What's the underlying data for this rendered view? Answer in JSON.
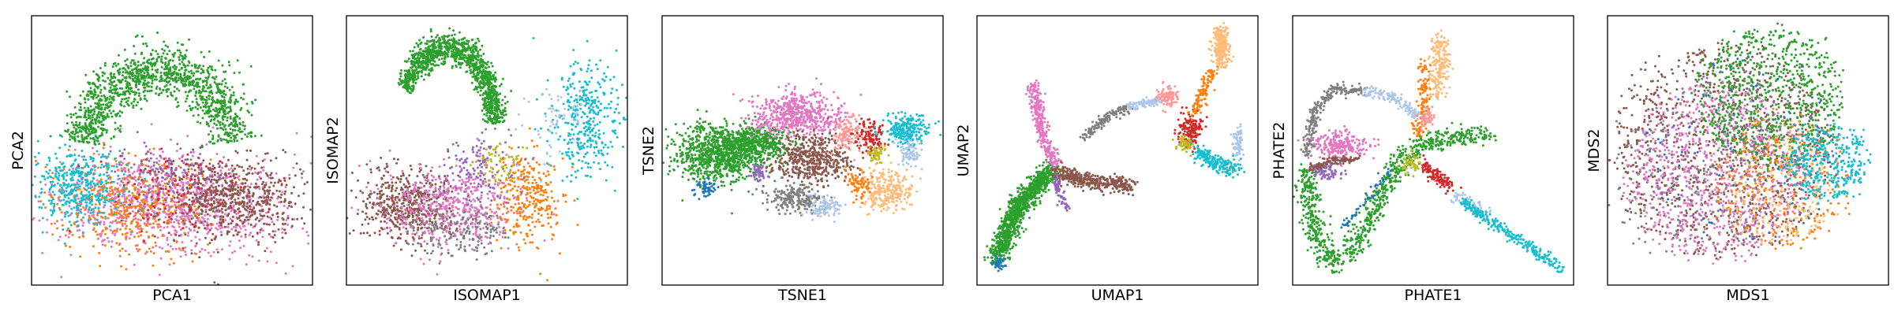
{
  "palette": {
    "blue": "#1f77b4",
    "orange": "#ff7f0e",
    "green": "#2ca02c",
    "red": "#d62728",
    "purple": "#9467bd",
    "brown": "#8c564b",
    "pink": "#e377c2",
    "gray": "#7f7f7f",
    "olive": "#bcbd22",
    "cyan": "#17becf",
    "lightblue": "#aec7e8",
    "peach": "#ffbb78",
    "salmon": "#ff9896"
  },
  "chart_data": [
    {
      "type": "scatter",
      "title": "",
      "xlabel": "PCA1",
      "ylabel": "PCA2",
      "grid": false,
      "legend": "none",
      "ticks": "hidden",
      "xlim": [
        0,
        1
      ],
      "ylim": [
        0,
        1
      ],
      "series": [
        {
          "color": "pink",
          "clusters": [
            {
              "cx": 0.5,
              "cy": 0.3,
              "sx": 0.2,
              "sy": 0.09,
              "n": 1100
            }
          ]
        },
        {
          "color": "brown",
          "clusters": [
            {
              "cx": 0.7,
              "cy": 0.33,
              "sx": 0.13,
              "sy": 0.08,
              "n": 650
            }
          ]
        },
        {
          "color": "orange",
          "clusters": [
            {
              "cx": 0.34,
              "cy": 0.3,
              "sx": 0.12,
              "sy": 0.09,
              "n": 420
            }
          ]
        },
        {
          "color": "cyan",
          "clusters": [
            {
              "cx": 0.17,
              "cy": 0.37,
              "sx": 0.08,
              "sy": 0.07,
              "n": 420
            }
          ]
        },
        {
          "color": "green",
          "arc": {
            "cx": 0.45,
            "cy": 0.48,
            "rx": 0.27,
            "ry": 0.32,
            "a0": 0.05,
            "a1": 0.95,
            "width": 0.07,
            "n": 1300
          }
        },
        {
          "color": "purple",
          "clusters": [
            {
              "cx": 0.46,
              "cy": 0.42,
              "sx": 0.09,
              "sy": 0.05,
              "n": 120
            }
          ]
        },
        {
          "color": "red",
          "clusters": [
            {
              "cx": 0.55,
              "cy": 0.33,
              "sx": 0.15,
              "sy": 0.08,
              "n": 90
            }
          ]
        }
      ]
    },
    {
      "type": "scatter",
      "title": "",
      "xlabel": "ISOMAP1",
      "ylabel": "ISOMAP2",
      "grid": false,
      "legend": "none",
      "ticks": "hidden",
      "xlim": [
        0,
        1
      ],
      "ylim": [
        0,
        1
      ],
      "series": [
        {
          "color": "brown",
          "clusters": [
            {
              "cx": 0.22,
              "cy": 0.3,
              "sx": 0.09,
              "sy": 0.07,
              "n": 520
            }
          ]
        },
        {
          "color": "pink",
          "clusters": [
            {
              "cx": 0.37,
              "cy": 0.29,
              "sx": 0.12,
              "sy": 0.07,
              "n": 520
            }
          ]
        },
        {
          "color": "gray",
          "clusters": [
            {
              "cx": 0.4,
              "cy": 0.2,
              "sx": 0.1,
              "sy": 0.05,
              "n": 160
            }
          ]
        },
        {
          "color": "orange",
          "clusters": [
            {
              "cx": 0.65,
              "cy": 0.33,
              "sx": 0.06,
              "sy": 0.09,
              "n": 300
            }
          ]
        },
        {
          "color": "cyan",
          "clusters": [
            {
              "cx": 0.85,
              "cy": 0.62,
              "sx": 0.06,
              "sy": 0.11,
              "n": 360
            }
          ]
        },
        {
          "color": "green",
          "arc": {
            "cx": 0.36,
            "cy": 0.6,
            "rx": 0.17,
            "ry": 0.28,
            "a0": 0.0,
            "a1": 0.85,
            "width": 0.045,
            "n": 1200
          }
        },
        {
          "color": "purple",
          "clusters": [
            {
              "cx": 0.47,
              "cy": 0.43,
              "sx": 0.07,
              "sy": 0.07,
              "n": 140
            }
          ]
        },
        {
          "color": "olive",
          "clusters": [
            {
              "cx": 0.55,
              "cy": 0.45,
              "sx": 0.04,
              "sy": 0.04,
              "n": 60
            }
          ]
        },
        {
          "color": "lightblue",
          "clusters": [
            {
              "cx": 0.74,
              "cy": 0.6,
              "sx": 0.06,
              "sy": 0.07,
              "n": 60
            }
          ]
        }
      ]
    },
    {
      "type": "scatter",
      "title": "",
      "xlabel": "TSNE1",
      "ylabel": "TSNE2",
      "grid": false,
      "legend": "none",
      "ticks": "hidden",
      "xlim": [
        0,
        1
      ],
      "ylim": [
        0,
        1
      ],
      "series": [
        {
          "color": "green",
          "clusters": [
            {
              "cx": 0.2,
              "cy": 0.49,
              "sx": 0.08,
              "sy": 0.05,
              "n": 900
            },
            {
              "cx": 0.34,
              "cy": 0.53,
              "sx": 0.06,
              "sy": 0.03,
              "n": 400
            }
          ]
        },
        {
          "color": "blue",
          "clusters": [
            {
              "cx": 0.15,
              "cy": 0.36,
              "sx": 0.02,
              "sy": 0.015,
              "n": 60
            }
          ]
        },
        {
          "color": "pink",
          "clusters": [
            {
              "cx": 0.48,
              "cy": 0.63,
              "sx": 0.08,
              "sy": 0.04,
              "n": 600
            }
          ]
        },
        {
          "color": "brown",
          "clusters": [
            {
              "cx": 0.53,
              "cy": 0.47,
              "sx": 0.07,
              "sy": 0.045,
              "n": 480
            }
          ]
        },
        {
          "color": "purple",
          "clusters": [
            {
              "cx": 0.34,
              "cy": 0.42,
              "sx": 0.015,
              "sy": 0.015,
              "n": 60
            }
          ]
        },
        {
          "color": "gray",
          "clusters": [
            {
              "cx": 0.48,
              "cy": 0.32,
              "sx": 0.05,
              "sy": 0.025,
              "n": 220
            }
          ]
        },
        {
          "color": "lightblue",
          "clusters": [
            {
              "cx": 0.58,
              "cy": 0.29,
              "sx": 0.03,
              "sy": 0.02,
              "n": 100
            }
          ]
        },
        {
          "color": "salmon",
          "clusters": [
            {
              "cx": 0.66,
              "cy": 0.56,
              "sx": 0.025,
              "sy": 0.03,
              "n": 120
            }
          ]
        },
        {
          "color": "red",
          "clusters": [
            {
              "cx": 0.74,
              "cy": 0.55,
              "sx": 0.025,
              "sy": 0.03,
              "n": 120
            }
          ]
        },
        {
          "color": "cyan",
          "clusters": [
            {
              "cx": 0.87,
              "cy": 0.58,
              "sx": 0.04,
              "sy": 0.03,
              "n": 240
            }
          ]
        },
        {
          "color": "lightblue",
          "clusters": [
            {
              "cx": 0.88,
              "cy": 0.49,
              "sx": 0.02,
              "sy": 0.025,
              "n": 80
            }
          ]
        },
        {
          "color": "olive",
          "clusters": [
            {
              "cx": 0.76,
              "cy": 0.49,
              "sx": 0.015,
              "sy": 0.015,
              "n": 60
            }
          ]
        },
        {
          "color": "peach",
          "clusters": [
            {
              "cx": 0.8,
              "cy": 0.35,
              "sx": 0.045,
              "sy": 0.04,
              "n": 280
            }
          ]
        },
        {
          "color": "orange",
          "clusters": [
            {
              "cx": 0.7,
              "cy": 0.38,
              "sx": 0.02,
              "sy": 0.03,
              "n": 80
            }
          ]
        }
      ]
    },
    {
      "type": "scatter",
      "title": "",
      "xlabel": "UMAP1",
      "ylabel": "UMAP2",
      "grid": false,
      "legend": "none",
      "ticks": "hidden",
      "xlim": [
        0,
        1
      ],
      "ylim": [
        0,
        1
      ],
      "series": [
        {
          "color": "green",
          "line": [
            [
              0.07,
              0.1
            ],
            [
              0.15,
              0.3
            ],
            [
              0.27,
              0.43
            ]
          ],
          "width": 0.018,
          "n": 1100
        },
        {
          "color": "blue",
          "clusters": [
            {
              "cx": 0.08,
              "cy": 0.08,
              "sx": 0.01,
              "sy": 0.012,
              "n": 40
            }
          ]
        },
        {
          "color": "pink",
          "line": [
            [
              0.2,
              0.75
            ],
            [
              0.23,
              0.57
            ],
            [
              0.28,
              0.44
            ]
          ],
          "width": 0.012,
          "n": 320
        },
        {
          "color": "brown",
          "line": [
            [
              0.28,
              0.42
            ],
            [
              0.42,
              0.38
            ],
            [
              0.55,
              0.37
            ]
          ],
          "width": 0.015,
          "n": 420
        },
        {
          "color": "purple",
          "line": [
            [
              0.28,
              0.4
            ],
            [
              0.3,
              0.33
            ],
            [
              0.32,
              0.28
            ]
          ],
          "width": 0.008,
          "n": 60
        },
        {
          "color": "gray",
          "line": [
            [
              0.38,
              0.55
            ],
            [
              0.46,
              0.62
            ],
            [
              0.54,
              0.66
            ]
          ],
          "width": 0.01,
          "n": 140
        },
        {
          "color": "lightblue",
          "line": [
            [
              0.54,
              0.66
            ],
            [
              0.62,
              0.68
            ],
            [
              0.66,
              0.69
            ]
          ],
          "width": 0.008,
          "n": 100
        },
        {
          "color": "salmon",
          "clusters": [
            {
              "cx": 0.68,
              "cy": 0.7,
              "sx": 0.02,
              "sy": 0.02,
              "n": 100
            }
          ]
        },
        {
          "color": "red",
          "clusters": [
            {
              "cx": 0.76,
              "cy": 0.58,
              "sx": 0.02,
              "sy": 0.035,
              "n": 160
            }
          ]
        },
        {
          "color": "peach",
          "line": [
            [
              0.87,
              0.95
            ],
            [
              0.87,
              0.82
            ]
          ],
          "width": 0.015,
          "n": 240
        },
        {
          "color": "orange",
          "line": [
            [
              0.84,
              0.8
            ],
            [
              0.8,
              0.7
            ],
            [
              0.77,
              0.63
            ]
          ],
          "width": 0.01,
          "n": 120
        },
        {
          "color": "lightblue",
          "clusters": [
            {
              "cx": 0.93,
              "cy": 0.53,
              "sx": 0.01,
              "sy": 0.03,
              "n": 80
            }
          ]
        },
        {
          "color": "cyan",
          "line": [
            [
              0.78,
              0.5
            ],
            [
              0.85,
              0.45
            ],
            [
              0.92,
              0.43
            ]
          ],
          "width": 0.015,
          "n": 200
        },
        {
          "color": "olive",
          "clusters": [
            {
              "cx": 0.74,
              "cy": 0.52,
              "sx": 0.015,
              "sy": 0.015,
              "n": 50
            }
          ]
        }
      ]
    },
    {
      "type": "scatter",
      "title": "",
      "xlabel": "PHATE1",
      "ylabel": "PHATE2",
      "grid": false,
      "legend": "none",
      "ticks": "hidden",
      "xlim": [
        0,
        1
      ],
      "ylim": [
        0,
        1
      ],
      "series": [
        {
          "color": "green",
          "line": [
            [
              0.05,
              0.42
            ],
            [
              0.08,
              0.2
            ],
            [
              0.13,
              0.08
            ],
            [
              0.22,
              0.14
            ],
            [
              0.3,
              0.3
            ],
            [
              0.38,
              0.45
            ],
            [
              0.46,
              0.52
            ],
            [
              0.56,
              0.55
            ],
            [
              0.66,
              0.55
            ],
            [
              0.7,
              0.55
            ]
          ],
          "width": 0.02,
          "n": 900
        },
        {
          "color": "gray",
          "line": [
            [
              0.05,
              0.48
            ],
            [
              0.08,
              0.65
            ],
            [
              0.15,
              0.73
            ],
            [
              0.25,
              0.72
            ]
          ],
          "width": 0.01,
          "n": 240
        },
        {
          "color": "lightblue",
          "line": [
            [
              0.25,
              0.72
            ],
            [
              0.35,
              0.7
            ],
            [
              0.45,
              0.63
            ]
          ],
          "width": 0.01,
          "n": 140
        },
        {
          "color": "pink",
          "clusters": [
            {
              "cx": 0.17,
              "cy": 0.52,
              "sx": 0.05,
              "sy": 0.025,
              "n": 240
            }
          ]
        },
        {
          "color": "brown",
          "line": [
            [
              0.06,
              0.43
            ],
            [
              0.14,
              0.46
            ],
            [
              0.23,
              0.47
            ]
          ],
          "width": 0.008,
          "n": 140
        },
        {
          "color": "purple",
          "clusters": [
            {
              "cx": 0.12,
              "cy": 0.42,
              "sx": 0.03,
              "sy": 0.015,
              "n": 60
            }
          ]
        },
        {
          "color": "peach",
          "line": [
            [
              0.52,
              0.92
            ],
            [
              0.53,
              0.8
            ],
            [
              0.5,
              0.7
            ]
          ],
          "width": 0.018,
          "n": 200
        },
        {
          "color": "orange",
          "line": [
            [
              0.47,
              0.83
            ],
            [
              0.47,
              0.7
            ],
            [
              0.44,
              0.55
            ]
          ],
          "width": 0.012,
          "n": 120
        },
        {
          "color": "salmon",
          "clusters": [
            {
              "cx": 0.48,
              "cy": 0.62,
              "sx": 0.015,
              "sy": 0.02,
              "n": 50
            }
          ]
        },
        {
          "color": "red",
          "line": [
            [
              0.46,
              0.45
            ],
            [
              0.52,
              0.4
            ],
            [
              0.56,
              0.36
            ]
          ],
          "width": 0.012,
          "n": 120
        },
        {
          "color": "olive",
          "clusters": [
            {
              "cx": 0.42,
              "cy": 0.45,
              "sx": 0.015,
              "sy": 0.015,
              "n": 50
            }
          ]
        },
        {
          "color": "lightblue",
          "line": [
            [
              0.58,
              0.33
            ],
            [
              0.7,
              0.26
            ]
          ],
          "width": 0.012,
          "n": 80
        },
        {
          "color": "cyan",
          "line": [
            [
              0.6,
              0.31
            ],
            [
              0.76,
              0.2
            ],
            [
              0.96,
              0.06
            ]
          ],
          "width": 0.01,
          "n": 260
        },
        {
          "color": "blue",
          "line": [
            [
              0.18,
              0.22
            ],
            [
              0.28,
              0.34
            ],
            [
              0.34,
              0.42
            ]
          ],
          "width": 0.008,
          "n": 50
        }
      ]
    },
    {
      "type": "scatter",
      "title": "",
      "xlabel": "MDS1",
      "ylabel": "MDS2",
      "grid": false,
      "legend": "none",
      "ticks": "hidden",
      "xlim": [
        0,
        1
      ],
      "ylim": [
        0,
        1
      ],
      "series": [
        {
          "color": "brown",
          "disc": {
            "cx": 0.42,
            "cy": 0.5,
            "r": 0.4,
            "n": 1000
          }
        },
        {
          "color": "pink",
          "disc": {
            "cx": 0.38,
            "cy": 0.42,
            "r": 0.32,
            "n": 800
          }
        },
        {
          "color": "green",
          "disc": {
            "cx": 0.58,
            "cy": 0.7,
            "r": 0.26,
            "n": 800
          }
        },
        {
          "color": "orange",
          "disc": {
            "cx": 0.62,
            "cy": 0.38,
            "r": 0.24,
            "n": 300
          }
        },
        {
          "color": "peach",
          "disc": {
            "cx": 0.62,
            "cy": 0.35,
            "r": 0.2,
            "n": 200
          }
        },
        {
          "color": "cyan",
          "disc": {
            "cx": 0.78,
            "cy": 0.45,
            "r": 0.14,
            "n": 360
          }
        },
        {
          "color": "purple",
          "disc": {
            "cx": 0.46,
            "cy": 0.48,
            "r": 0.33,
            "n": 150
          }
        },
        {
          "color": "gray",
          "disc": {
            "cx": 0.3,
            "cy": 0.4,
            "r": 0.3,
            "n": 150
          }
        },
        {
          "color": "blue",
          "disc": {
            "cx": 0.5,
            "cy": 0.5,
            "r": 0.35,
            "n": 80
          }
        }
      ]
    }
  ]
}
